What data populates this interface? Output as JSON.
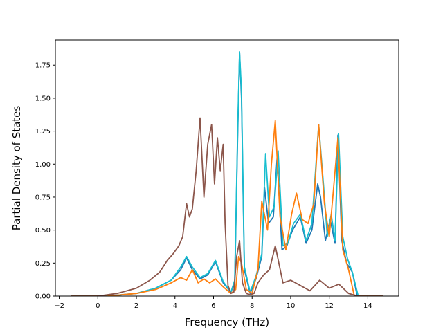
{
  "chart_data": {
    "type": "line",
    "title": "",
    "xlabel": "Frequency (THz)",
    "ylabel": "Partial Density of States",
    "xlim": [
      -2.2,
      15.6
    ],
    "ylim": [
      0,
      1.94
    ],
    "x_ticks": [
      -2,
      0,
      2,
      4,
      6,
      8,
      10,
      12,
      14
    ],
    "y_ticks": [
      0.0,
      0.25,
      0.5,
      0.75,
      1.0,
      1.25,
      1.5,
      1.75
    ],
    "x_tick_labels": [
      "−2",
      "0",
      "2",
      "4",
      "6",
      "8",
      "10",
      "12",
      "14"
    ],
    "y_tick_labels": [
      "0.00",
      "0.25",
      "0.50",
      "0.75",
      "1.00",
      "1.25",
      "1.50",
      "1.75"
    ],
    "grid": false,
    "legend": "none",
    "series": [
      {
        "color": "#1f77b4",
        "x": [
          -1.4,
          0.5,
          2.0,
          3.0,
          3.8,
          4.3,
          4.6,
          4.9,
          5.3,
          5.7,
          6.1,
          6.5,
          6.9,
          7.1,
          7.25,
          7.35,
          7.45,
          7.6,
          7.9,
          8.2,
          8.5,
          8.65,
          8.85,
          9.1,
          9.3,
          9.55,
          9.8,
          10.1,
          10.5,
          10.8,
          11.1,
          11.4,
          11.55,
          11.8,
          12.05,
          12.3,
          12.45,
          12.65,
          12.9,
          13.2,
          13.45,
          14.8
        ],
        "y": [
          0.0,
          0.0,
          0.02,
          0.06,
          0.12,
          0.2,
          0.29,
          0.2,
          0.13,
          0.16,
          0.26,
          0.1,
          0.03,
          0.1,
          1.2,
          1.85,
          1.5,
          0.2,
          0.02,
          0.13,
          0.3,
          0.82,
          0.55,
          0.6,
          1.05,
          0.35,
          0.38,
          0.5,
          0.6,
          0.4,
          0.5,
          0.85,
          0.75,
          0.42,
          0.58,
          0.4,
          1.22,
          0.42,
          0.25,
          0.18,
          0.0,
          0.0
        ]
      },
      {
        "color": "#17becf",
        "x": [
          -1.4,
          0.5,
          2.0,
          3.0,
          3.8,
          4.3,
          4.6,
          4.9,
          5.3,
          5.7,
          6.1,
          6.5,
          6.9,
          7.1,
          7.25,
          7.35,
          7.45,
          7.6,
          7.9,
          8.2,
          8.5,
          8.7,
          8.9,
          9.15,
          9.35,
          9.6,
          9.85,
          10.15,
          10.5,
          10.8,
          11.1,
          11.45,
          11.7,
          11.9,
          12.1,
          12.3,
          12.48,
          12.7,
          12.95,
          13.2,
          13.5,
          14.8
        ],
        "y": [
          0.0,
          0.0,
          0.02,
          0.06,
          0.12,
          0.22,
          0.3,
          0.22,
          0.14,
          0.17,
          0.27,
          0.11,
          0.03,
          0.12,
          1.25,
          1.85,
          1.55,
          0.22,
          0.03,
          0.15,
          0.32,
          1.08,
          0.6,
          0.68,
          1.1,
          0.38,
          0.4,
          0.55,
          0.62,
          0.42,
          0.55,
          1.3,
          0.85,
          0.45,
          0.62,
          0.42,
          1.23,
          0.45,
          0.28,
          0.18,
          0.0,
          0.0
        ]
      },
      {
        "color": "#ff7f0e",
        "x": [
          -1.4,
          0.5,
          2.0,
          3.0,
          3.8,
          4.3,
          4.6,
          4.9,
          5.2,
          5.5,
          5.8,
          6.1,
          6.5,
          6.9,
          7.15,
          7.3,
          7.45,
          7.7,
          8.0,
          8.3,
          8.5,
          8.8,
          9.0,
          9.2,
          9.45,
          9.75,
          10.05,
          10.3,
          10.6,
          10.9,
          11.2,
          11.45,
          11.75,
          12.0,
          12.2,
          12.45,
          12.7,
          13.0,
          13.3,
          14.8
        ],
        "y": [
          0.0,
          0.0,
          0.02,
          0.05,
          0.1,
          0.14,
          0.12,
          0.2,
          0.1,
          0.13,
          0.1,
          0.13,
          0.07,
          0.02,
          0.05,
          0.3,
          0.25,
          0.05,
          0.02,
          0.2,
          0.72,
          0.5,
          1.0,
          1.33,
          0.6,
          0.35,
          0.62,
          0.78,
          0.58,
          0.55,
          0.7,
          1.3,
          0.7,
          0.45,
          0.78,
          1.2,
          0.35,
          0.2,
          0.0,
          0.0
        ]
      },
      {
        "color": "#8c564b",
        "x": [
          -1.4,
          0.0,
          1.0,
          2.0,
          2.7,
          3.2,
          3.6,
          3.9,
          4.2,
          4.4,
          4.6,
          4.75,
          4.9,
          5.1,
          5.3,
          5.5,
          5.7,
          5.9,
          6.05,
          6.2,
          6.35,
          6.5,
          6.6,
          6.75,
          6.9,
          7.05,
          7.2,
          7.35,
          7.5,
          7.7,
          7.9,
          8.1,
          8.3,
          8.6,
          8.9,
          9.2,
          9.6,
          10.0,
          10.5,
          11.0,
          11.5,
          12.0,
          12.5,
          13.0,
          13.5,
          14.8
        ],
        "y": [
          0.0,
          0.0,
          0.02,
          0.06,
          0.12,
          0.18,
          0.27,
          0.32,
          0.38,
          0.45,
          0.7,
          0.6,
          0.66,
          0.95,
          1.35,
          0.75,
          1.15,
          1.3,
          0.85,
          1.2,
          0.95,
          1.15,
          0.55,
          0.08,
          0.02,
          0.03,
          0.3,
          0.42,
          0.1,
          0.02,
          0.01,
          0.02,
          0.1,
          0.16,
          0.2,
          0.38,
          0.1,
          0.12,
          0.08,
          0.04,
          0.12,
          0.06,
          0.09,
          0.02,
          0.0,
          0.0
        ]
      }
    ]
  }
}
